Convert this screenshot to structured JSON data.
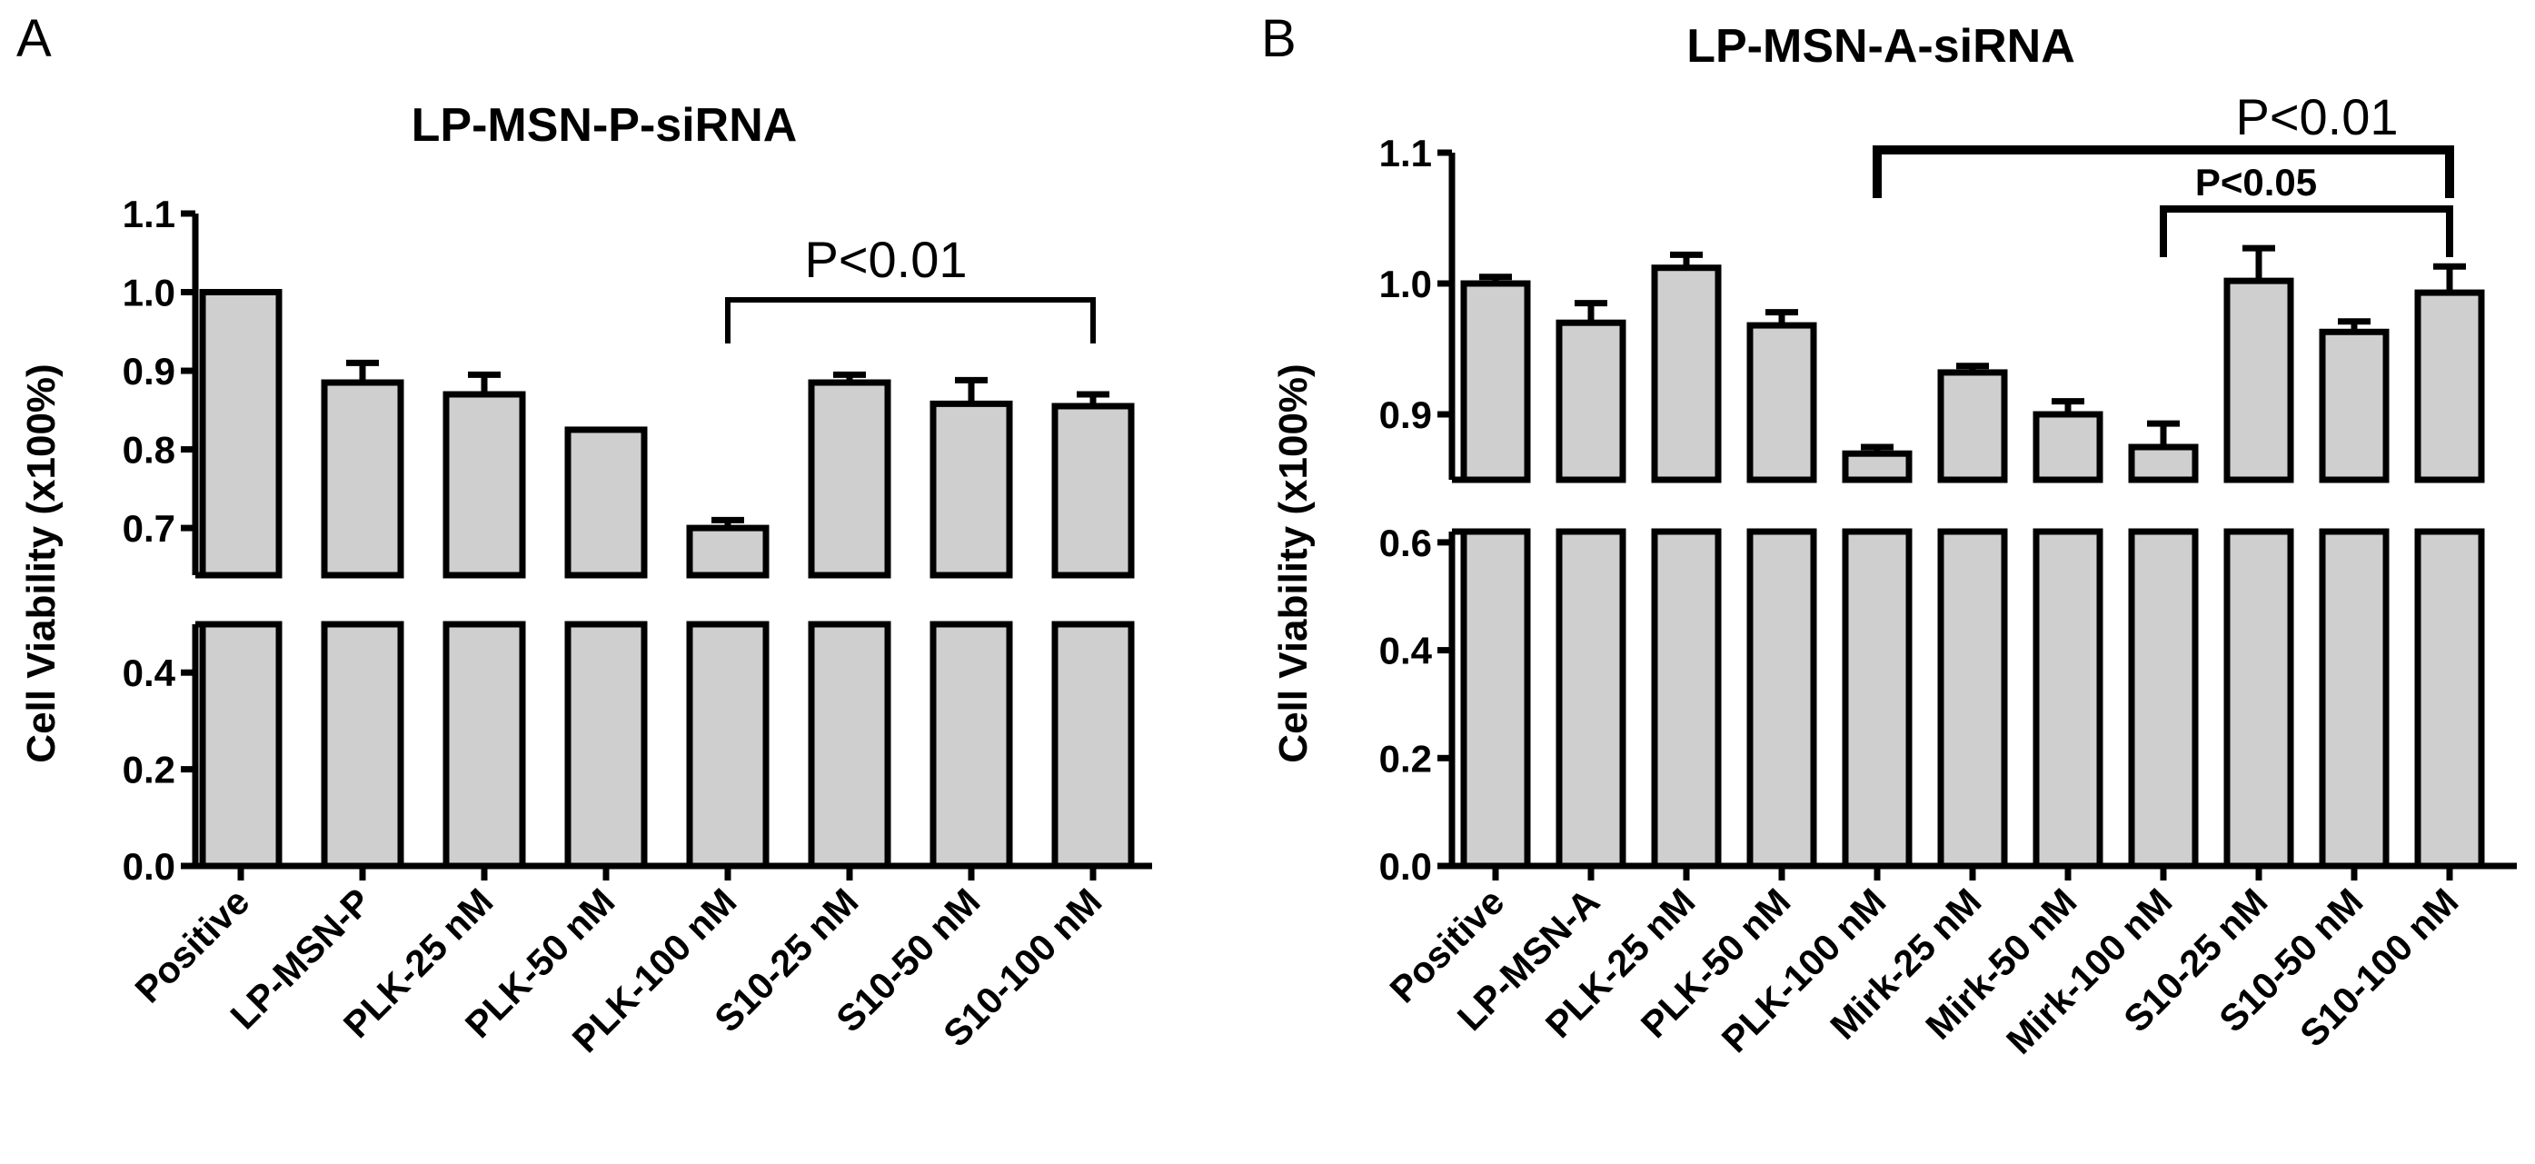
{
  "chart_data": [
    {
      "panel": "A",
      "type": "bar",
      "title": "LP-MSN-P-siRNA",
      "ylabel": "Cell Viability (x100%)",
      "categories": [
        "Positive",
        "LP-MSN-P",
        "PLK-25 nM",
        "PLK-50 nM",
        "PLK-100 nM",
        "S10-25 nM",
        "S10-50 nM",
        "S10-100 nM"
      ],
      "values": [
        1.0,
        0.885,
        0.87,
        0.825,
        0.7,
        0.885,
        0.858,
        0.855
      ],
      "errors": [
        0.0,
        0.025,
        0.025,
        0.0,
        0.01,
        0.01,
        0.03,
        0.015
      ],
      "ylim_lower": [
        0.0,
        0.5
      ],
      "ylim_upper": [
        0.64,
        1.1
      ],
      "yticks_lower": [
        "0.0",
        "0.2",
        "0.4"
      ],
      "yticks_upper": [
        "0.7",
        "0.8",
        "0.9",
        "1.0",
        "1.1"
      ],
      "annotations": [
        {
          "label": "P<0.01",
          "from": "PLK-100 nM",
          "to": "S10-100 nM"
        }
      ]
    },
    {
      "panel": "B",
      "type": "bar",
      "title": "LP-MSN-A-siRNA",
      "ylabel": "Cell Viability (x100%)",
      "categories": [
        "Positive",
        "LP-MSN-A",
        "PLK-25 nM",
        "PLK-50 nM",
        "PLK-100 nM",
        "Mirk-25 nM",
        "Mirk-50 nM",
        "Mirk-100 nM",
        "S10-25 nM",
        "S10-50 nM",
        "S10-100 nM"
      ],
      "values": [
        1.0,
        0.97,
        1.012,
        0.968,
        0.87,
        0.932,
        0.9,
        0.875,
        1.002,
        0.963,
        0.993
      ],
      "errors": [
        0.005,
        0.015,
        0.01,
        0.01,
        0.005,
        0.005,
        0.01,
        0.018,
        0.025,
        0.008,
        0.02
      ],
      "ylim_lower": [
        0.0,
        0.62
      ],
      "ylim_upper": [
        0.85,
        1.1
      ],
      "yticks_lower": [
        "0.0",
        "0.2",
        "0.4",
        "0.6"
      ],
      "yticks_upper": [
        "0.9",
        "1.0",
        "1.1"
      ],
      "annotations": [
        {
          "label": "P<0.01",
          "from": "PLK-100 nM",
          "to": "S10-100 nM"
        },
        {
          "label": "P<0.05",
          "from": "Mirk-100 nM",
          "to": "S10-100 nM"
        }
      ]
    }
  ]
}
